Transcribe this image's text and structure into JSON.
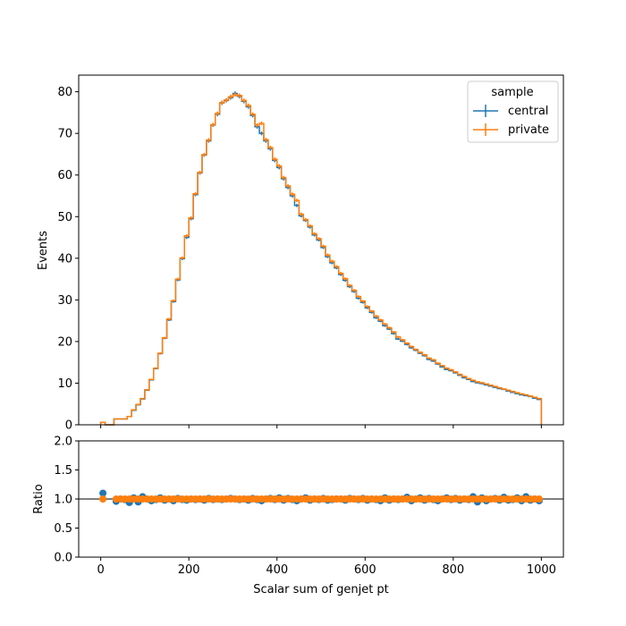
{
  "chart_data": [
    {
      "type": "step-histogram",
      "xlabel": "",
      "ylabel": "Events",
      "xlim": [
        -50,
        1050
      ],
      "ylim": [
        0,
        84
      ],
      "xticks": [
        0,
        200,
        400,
        600,
        800,
        1000
      ],
      "yticks": [
        0,
        10,
        20,
        30,
        40,
        50,
        60,
        70,
        80
      ],
      "legend": {
        "title": "sample",
        "position": "top-right"
      },
      "bin_width": 10,
      "x": [
        5,
        15,
        25,
        35,
        45,
        55,
        65,
        75,
        85,
        95,
        105,
        115,
        125,
        135,
        145,
        155,
        165,
        175,
        185,
        195,
        205,
        215,
        225,
        235,
        245,
        255,
        265,
        275,
        285,
        295,
        305,
        315,
        325,
        335,
        345,
        355,
        365,
        375,
        385,
        395,
        405,
        415,
        425,
        435,
        445,
        455,
        465,
        475,
        485,
        495,
        505,
        515,
        525,
        535,
        545,
        555,
        565,
        575,
        585,
        595,
        605,
        615,
        625,
        635,
        645,
        655,
        665,
        675,
        685,
        695,
        705,
        715,
        725,
        735,
        745,
        755,
        765,
        775,
        785,
        795,
        805,
        815,
        825,
        835,
        845,
        855,
        865,
        875,
        885,
        895,
        905,
        915,
        925,
        935,
        945,
        955,
        965,
        975,
        985,
        995
      ],
      "series": [
        {
          "name": "central",
          "color": "#1f77b4",
          "values": [
            0.6,
            0,
            0,
            1.4,
            1.4,
            1.4,
            2.0,
            3.5,
            4.8,
            6.2,
            8.3,
            10.8,
            13.5,
            17.1,
            20.8,
            25.2,
            29.6,
            34.8,
            39.9,
            45.0,
            49.5,
            55.3,
            60.5,
            64.8,
            68.2,
            72.0,
            74.6,
            77.3,
            77.9,
            78.6,
            79.6,
            78.9,
            77.7,
            76.4,
            74.3,
            71.6,
            70.0,
            68.2,
            66.3,
            63.5,
            61.8,
            59.1,
            57.0,
            55.0,
            52.7,
            50.2,
            49.1,
            47.5,
            45.6,
            44.4,
            42.6,
            40.4,
            38.9,
            37.7,
            36.1,
            34.7,
            33.2,
            32.0,
            30.4,
            29.4,
            28.1,
            27.0,
            25.7,
            24.9,
            23.8,
            23.0,
            21.9,
            20.6,
            20.1,
            19.3,
            18.5,
            17.9,
            17.2,
            16.6,
            15.7,
            15.3,
            14.6,
            13.9,
            13.3,
            13.0,
            12.5,
            11.9,
            11.3,
            10.9,
            10.4,
            10.1,
            9.9,
            9.6,
            9.3,
            9.0,
            8.7,
            8.5,
            8.1,
            7.8,
            7.5,
            7.2,
            7.0,
            6.8,
            6.4,
            6.1
          ]
        },
        {
          "name": "private",
          "color": "#ff7f0e",
          "values": [
            0.6,
            0,
            0,
            1.4,
            1.4,
            1.4,
            2.0,
            3.6,
            4.9,
            6.3,
            8.4,
            10.9,
            13.6,
            17.2,
            20.9,
            25.4,
            29.8,
            35.0,
            40.1,
            45.4,
            49.7,
            55.5,
            60.6,
            64.9,
            68.4,
            72.1,
            74.8,
            77.4,
            78.0,
            78.8,
            79.3,
            79.1,
            77.9,
            76.7,
            74.6,
            72.0,
            72.4,
            68.5,
            66.6,
            63.8,
            62.2,
            59.4,
            57.4,
            55.4,
            53.9,
            50.6,
            49.3,
            47.8,
            45.9,
            44.7,
            42.9,
            40.8,
            39.3,
            38.0,
            36.4,
            35.1,
            33.5,
            32.3,
            30.8,
            29.7,
            28.4,
            27.3,
            26.1,
            25.2,
            24.2,
            23.3,
            22.3,
            21.1,
            20.4,
            19.6,
            18.8,
            18.1,
            17.4,
            16.8,
            16.0,
            15.6,
            14.8,
            14.2,
            13.6,
            13.2,
            12.7,
            12.1,
            11.6,
            11.1,
            10.7,
            10.3,
            10.1,
            9.8,
            9.5,
            9.2,
            8.9,
            8.6,
            8.3,
            8.0,
            7.7,
            7.4,
            7.2,
            6.9,
            6.6,
            6.3
          ]
        }
      ]
    },
    {
      "type": "scatter",
      "xlabel": "Scalar sum of genjet pt",
      "ylabel": "Ratio",
      "xlim": [
        -50,
        1050
      ],
      "ylim": [
        0,
        2
      ],
      "xticks": [
        0,
        200,
        400,
        600,
        800,
        1000
      ],
      "yticks": [
        0.0,
        0.5,
        1.0,
        1.5,
        2.0
      ],
      "reference_line": 1.0,
      "series": [
        {
          "name": "central",
          "color": "#1f77b4",
          "values": [
            1.1,
            null,
            null,
            0.96,
            1.0,
            0.99,
            0.94,
            1.02,
            0.95,
            1.04,
            1.0,
            0.97,
            0.99,
            1.02,
            0.98,
            1.0,
            0.97,
            1.01,
            0.99,
            0.98,
            1.0,
            0.99,
            1.0,
            0.98,
            1.01,
            0.99,
            1.0,
            0.99,
            1.0,
            1.01,
            1.0,
            0.99,
            1.0,
            0.98,
            1.01,
            0.99,
            0.97,
            1.0,
            1.01,
            0.99,
            1.02,
            0.98,
            1.01,
            0.99,
            0.97,
            1.0,
            1.02,
            0.98,
            1.0,
            0.99,
            1.01,
            0.98,
            0.99,
            1.0,
            1.0,
            0.98,
            1.01,
            1.0,
            0.99,
            1.01,
            0.98,
            1.0,
            0.99,
            0.97,
            1.02,
            0.98,
            1.0,
            0.99,
            1.0,
            1.03,
            0.97,
            1.0,
            1.02,
            0.98,
            1.01,
            0.99,
            0.97,
            1.0,
            1.02,
            0.99,
            1.01,
            0.98,
            1.0,
            0.99,
            1.04,
            0.95,
            1.02,
            0.97,
            1.0,
            1.01,
            0.98,
            1.03,
            0.98,
            0.99,
            1.02,
            0.97,
            1.04,
            0.98,
            1.0,
            0.97
          ]
        },
        {
          "name": "private",
          "color": "#ff7f0e",
          "values": [
            1.0,
            null,
            null,
            1.0,
            1.0,
            1.0,
            1.0,
            1.0,
            1.0,
            1.0,
            1.0,
            1.0,
            1.0,
            1.0,
            1.0,
            1.0,
            1.0,
            1.0,
            1.0,
            1.0,
            1.0,
            1.0,
            1.0,
            1.0,
            1.0,
            1.0,
            1.0,
            1.0,
            1.0,
            1.0,
            1.0,
            1.0,
            1.0,
            1.0,
            1.0,
            1.0,
            1.0,
            1.0,
            1.0,
            1.0,
            1.0,
            1.0,
            1.0,
            1.0,
            1.0,
            1.0,
            1.0,
            1.0,
            1.0,
            1.0,
            1.0,
            1.0,
            1.0,
            1.0,
            1.0,
            1.0,
            1.0,
            1.0,
            1.0,
            1.0,
            1.0,
            1.0,
            1.0,
            1.0,
            1.0,
            1.0,
            1.0,
            1.0,
            1.0,
            1.0,
            1.0,
            1.0,
            1.0,
            1.0,
            1.0,
            1.0,
            1.0,
            1.0,
            1.0,
            1.0,
            1.0,
            1.0,
            1.0,
            1.0,
            1.0,
            1.0,
            1.0,
            1.0,
            1.0,
            1.0,
            1.0,
            1.0,
            1.0,
            1.0,
            1.0,
            1.0,
            1.0,
            1.0,
            1.0,
            1.0
          ]
        }
      ]
    }
  ]
}
